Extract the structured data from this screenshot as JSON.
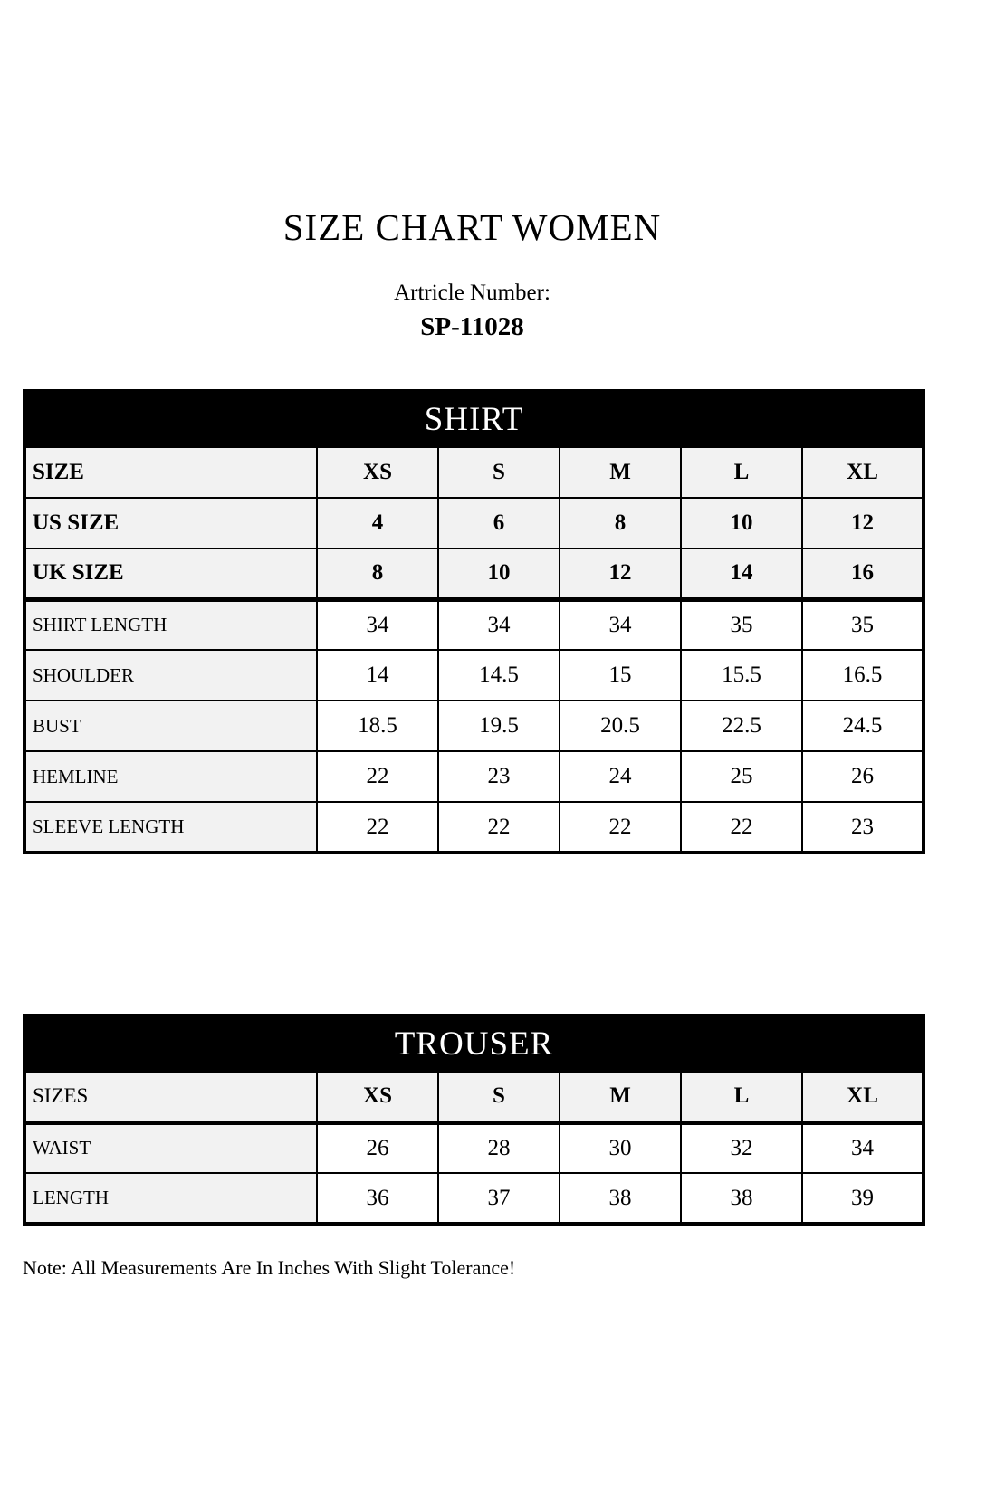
{
  "page": {
    "title": "SIZE CHART WOMEN",
    "article_label": "Artricle Number:",
    "article_number": "SP-11028",
    "note": "Note: All Measurements Are In Inches With Slight Tolerance!"
  },
  "colors": {
    "header_bg": "#000000",
    "header_text": "#ffffff",
    "shaded_cell_bg": "#f2f2f2",
    "data_cell_bg": "#ffffff",
    "border": "#000000"
  },
  "shirt_table": {
    "title": "SHIRT",
    "size_rows": [
      {
        "label": "SIZE",
        "values": [
          "XS",
          "S",
          "M",
          "L",
          "XL"
        ]
      },
      {
        "label": "US SIZE",
        "values": [
          "4",
          "6",
          "8",
          "10",
          "12"
        ]
      },
      {
        "label": "UK SIZE",
        "values": [
          "8",
          "10",
          "12",
          "14",
          "16"
        ]
      }
    ],
    "measure_rows": [
      {
        "label": "SHIRT LENGTH",
        "values": [
          "34",
          "34",
          "34",
          "35",
          "35"
        ]
      },
      {
        "label": "SHOULDER",
        "values": [
          "14",
          "14.5",
          "15",
          "15.5",
          "16.5"
        ]
      },
      {
        "label": "BUST",
        "values": [
          "18.5",
          "19.5",
          "20.5",
          "22.5",
          "24.5"
        ]
      },
      {
        "label": "HEMLINE",
        "values": [
          "22",
          "23",
          "24",
          "25",
          "26"
        ]
      },
      {
        "label": "SLEEVE LENGTH",
        "values": [
          "22",
          "22",
          "22",
          "22",
          "23"
        ]
      }
    ]
  },
  "trouser_table": {
    "title": "TROUSER",
    "header_row": {
      "label": "SIZES",
      "values": [
        "XS",
        "S",
        "M",
        "L",
        "XL"
      ]
    },
    "measure_rows": [
      {
        "label": "WAIST",
        "values": [
          "26",
          "28",
          "30",
          "32",
          "34"
        ]
      },
      {
        "label": "LENGTH",
        "values": [
          "36",
          "37",
          "38",
          "38",
          "39"
        ]
      }
    ]
  }
}
